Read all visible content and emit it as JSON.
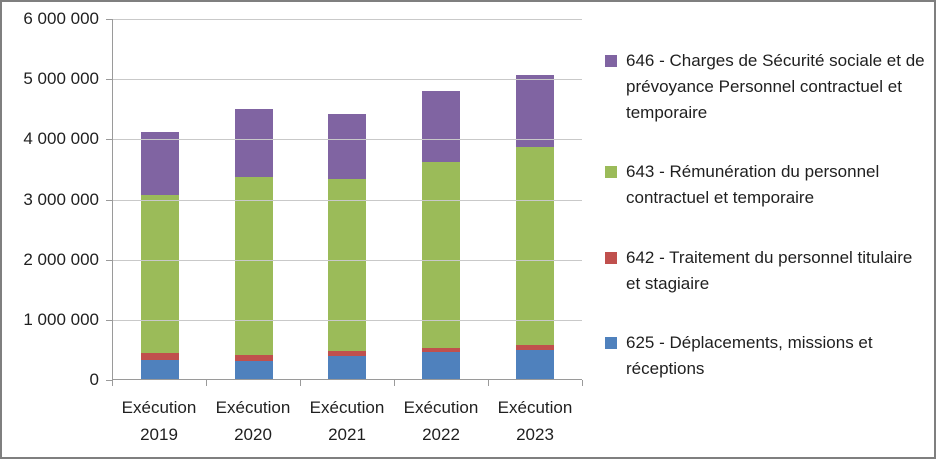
{
  "chart_data": {
    "type": "bar",
    "stacked": true,
    "title": "",
    "xlabel": "",
    "ylabel": "",
    "grid": true,
    "legend_position": "right",
    "ylim": [
      0,
      6000000
    ],
    "ytick_step": 1000000,
    "ytick_labels": [
      "0",
      "1 000 000",
      "2 000 000",
      "3 000 000",
      "4 000 000",
      "5 000 000",
      "6 000 000"
    ],
    "categories": [
      "Exécution 2019",
      "Exécution 2020",
      "Exécution 2021",
      "Exécution 2022",
      "Exécution 2023"
    ],
    "series": [
      {
        "name": "625 - Déplacements, missions et réceptions",
        "color": "#4F81BD",
        "values": [
          310000,
          300000,
          380000,
          450000,
          480000
        ]
      },
      {
        "name": "642 - Traitement du personnel titulaire et stagiaire",
        "color": "#C0504D",
        "values": [
          130000,
          100000,
          90000,
          70000,
          80000
        ]
      },
      {
        "name": "643 - Rémunération du personnel contractuel et temporaire",
        "color": "#9BBB59",
        "values": [
          2620000,
          2950000,
          2860000,
          3090000,
          3290000
        ]
      },
      {
        "name": "646 - Charges de Sécurité sociale et de prévoyance Personnel contractuel et temporaire",
        "color": "#8064A2",
        "values": [
          1050000,
          1140000,
          1080000,
          1170000,
          1210000
        ]
      }
    ],
    "legend_order": [
      3,
      2,
      1,
      0
    ],
    "axis_color": "#9a9a9a",
    "gridline_color": "#c9c9c9",
    "text_color": "#1f1f1f"
  }
}
